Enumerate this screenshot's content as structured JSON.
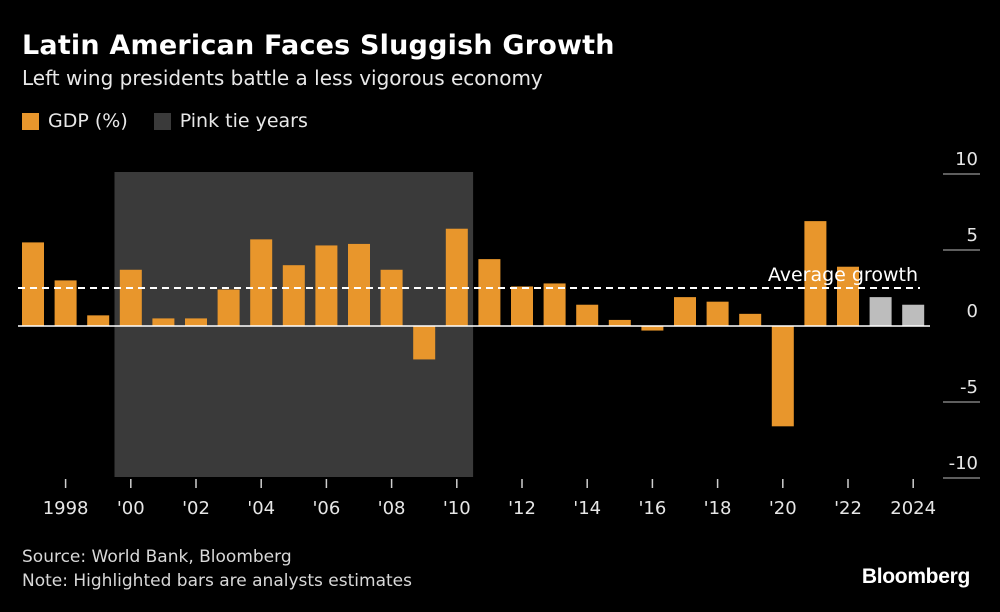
{
  "colors": {
    "background": "#000000",
    "gdp": "#E8962C",
    "estimate": "#BDBDBD",
    "pink_tide": "#3a3a3a"
  },
  "chart_data": {
    "type": "bar",
    "title": "Latin American Faces Sluggish Growth",
    "subtitle": "Left wing presidents battle a less vigorous economy",
    "legend": [
      {
        "label": "GDP (%)",
        "color": "#E8962C"
      },
      {
        "label": "Pink tie years",
        "color": "#3a3a3a"
      }
    ],
    "years": [
      1997,
      1998,
      1999,
      2000,
      2001,
      2002,
      2003,
      2004,
      2005,
      2006,
      2007,
      2008,
      2009,
      2010,
      2011,
      2012,
      2013,
      2014,
      2015,
      2016,
      2017,
      2018,
      2019,
      2020,
      2021,
      2022,
      2023,
      2024
    ],
    "values": [
      5.5,
      3.0,
      0.7,
      3.7,
      0.5,
      0.5,
      2.4,
      5.7,
      4.0,
      5.3,
      5.4,
      3.7,
      -2.2,
      6.4,
      4.4,
      2.6,
      2.8,
      1.4,
      0.4,
      -0.3,
      1.9,
      1.6,
      0.8,
      -6.6,
      6.9,
      3.9,
      1.9,
      1.4
    ],
    "estimate_years": [
      2023,
      2024
    ],
    "xtick_labels": [
      {
        "year": 1998,
        "label": "1998"
      },
      {
        "year": 2000,
        "label": "'00"
      },
      {
        "year": 2002,
        "label": "'02"
      },
      {
        "year": 2004,
        "label": "'04"
      },
      {
        "year": 2006,
        "label": "'06"
      },
      {
        "year": 2008,
        "label": "'08"
      },
      {
        "year": 2010,
        "label": "'10"
      },
      {
        "year": 2012,
        "label": "'12"
      },
      {
        "year": 2014,
        "label": "'14"
      },
      {
        "year": 2016,
        "label": "'16"
      },
      {
        "year": 2018,
        "label": "'18"
      },
      {
        "year": 2020,
        "label": "'20"
      },
      {
        "year": 2022,
        "label": "'22"
      },
      {
        "year": 2024,
        "label": "2024"
      }
    ],
    "yticks": [
      {
        "value": 10,
        "label": "10"
      },
      {
        "value": 5,
        "label": "5"
      },
      {
        "value": 0,
        "label": "0"
      },
      {
        "value": -5,
        "label": "-5"
      },
      {
        "value": -10,
        "label": "-10"
      }
    ],
    "ylim": [
      -10,
      10
    ],
    "average_growth": 2.5,
    "average_label": "Average growth",
    "pink_tide_range": [
      2000,
      2010
    ]
  },
  "footer": {
    "source": "Source: World Bank, Bloomberg",
    "note": "Note: Highlighted bars are analysts estimates"
  },
  "brand": "Bloomberg"
}
